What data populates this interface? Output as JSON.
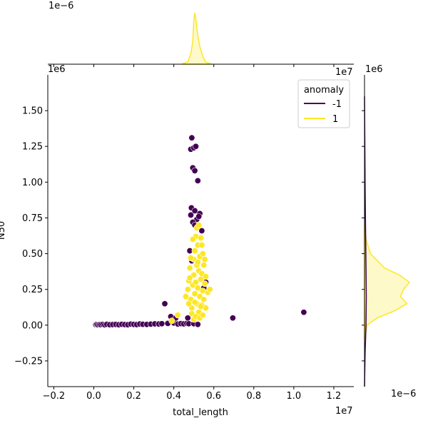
{
  "chart_data": {
    "type": "scatter",
    "title": "",
    "xlabel": "total_length",
    "ylabel": "N50",
    "x_scale_label": "1e7",
    "y_scale_label": "1e6",
    "top_marginal_scale_label": "1e−6",
    "right_marginal_scale_label": "1e−6",
    "right_marginal_top_label": "1e6",
    "top_marginal_right_label": "1e7",
    "xlim": [
      -2300000,
      13000000
    ],
    "ylim": [
      -430000,
      1750000
    ],
    "xticks": [
      -2000000,
      0,
      2000000,
      4000000,
      6000000,
      8000000,
      10000000,
      12000000
    ],
    "xtick_labels": [
      "−0.2",
      "0.0",
      "0.2",
      "0.4",
      "0.6",
      "0.8",
      "1.0",
      "1.2"
    ],
    "yticks": [
      -250000,
      0,
      250000,
      500000,
      750000,
      1000000,
      1250000,
      1500000
    ],
    "ytick_labels": [
      "−0.25",
      "0.00",
      "0.25",
      "0.50",
      "0.75",
      "1.00",
      "1.25",
      "1.50"
    ],
    "grid": false,
    "legend": {
      "title": "anomaly",
      "placement": "top-right",
      "entries": [
        {
          "label": "-1",
          "color": "#440154"
        },
        {
          "label": "1",
          "color": "#fde725"
        }
      ]
    },
    "series": [
      {
        "name": "-1",
        "color": "#440154",
        "points": [
          [
            100000,
            3000
          ],
          [
            150000,
            5000
          ],
          [
            200000,
            2000
          ],
          [
            280000,
            4000
          ],
          [
            350000,
            3000
          ],
          [
            450000,
            5000
          ],
          [
            550000,
            2000
          ],
          [
            650000,
            6000
          ],
          [
            800000,
            3000
          ],
          [
            950000,
            4000
          ],
          [
            1100000,
            5000
          ],
          [
            1250000,
            3000
          ],
          [
            1400000,
            6000
          ],
          [
            1550000,
            4000
          ],
          [
            1700000,
            3000
          ],
          [
            1850000,
            7000
          ],
          [
            2000000,
            5000
          ],
          [
            2150000,
            4000
          ],
          [
            2300000,
            8000
          ],
          [
            2450000,
            6000
          ],
          [
            2650000,
            5000
          ],
          [
            2850000,
            7000
          ],
          [
            3050000,
            9000
          ],
          [
            3250000,
            8000
          ],
          [
            3400000,
            10000
          ],
          [
            3550000,
            150000
          ],
          [
            3700000,
            12000
          ],
          [
            3850000,
            60000
          ],
          [
            4000000,
            15000
          ],
          [
            4100000,
            50000
          ],
          [
            4200000,
            8000
          ],
          [
            4350000,
            11000
          ],
          [
            4500000,
            9000
          ],
          [
            4650000,
            12000
          ],
          [
            4750000,
            10000
          ],
          [
            4800000,
            520000
          ],
          [
            4850000,
            1230000
          ],
          [
            4900000,
            1310000
          ],
          [
            4950000,
            1100000
          ],
          [
            5000000,
            1240000
          ],
          [
            5100000,
            1250000
          ],
          [
            5050000,
            1080000
          ],
          [
            5200000,
            1010000
          ],
          [
            4880000,
            820000
          ],
          [
            4850000,
            770000
          ],
          [
            5050000,
            800000
          ],
          [
            5300000,
            780000
          ],
          [
            5150000,
            740000
          ],
          [
            4950000,
            720000
          ],
          [
            5050000,
            700000
          ],
          [
            5250000,
            760000
          ],
          [
            5400000,
            660000
          ],
          [
            4900000,
            450000
          ],
          [
            5500000,
            260000
          ],
          [
            5600000,
            300000
          ],
          [
            4700000,
            50000
          ],
          [
            5000000,
            10000
          ],
          [
            5200000,
            5000
          ],
          [
            6950000,
            50000
          ],
          [
            10500000,
            90000
          ]
        ]
      },
      {
        "name": "1",
        "color": "#fde725",
        "points": [
          [
            3900000,
            30000
          ],
          [
            4200000,
            70000
          ],
          [
            4600000,
            200000
          ],
          [
            4700000,
            250000
          ],
          [
            4750000,
            310000
          ],
          [
            4800000,
            400000
          ],
          [
            4850000,
            180000
          ],
          [
            4900000,
            120000
          ],
          [
            4950000,
            280000
          ],
          [
            5000000,
            350000
          ],
          [
            5000000,
            460000
          ],
          [
            5050000,
            220000
          ],
          [
            5050000,
            520000
          ],
          [
            5100000,
            300000
          ],
          [
            5100000,
            620000
          ],
          [
            5150000,
            150000
          ],
          [
            5150000,
            420000
          ],
          [
            5200000,
            260000
          ],
          [
            5200000,
            560000
          ],
          [
            5250000,
            90000
          ],
          [
            5250000,
            380000
          ],
          [
            5300000,
            200000
          ],
          [
            5300000,
            480000
          ],
          [
            5350000,
            320000
          ],
          [
            5350000,
            610000
          ],
          [
            5400000,
            140000
          ],
          [
            5400000,
            360000
          ],
          [
            5450000,
            240000
          ],
          [
            5450000,
            500000
          ],
          [
            5500000,
            180000
          ],
          [
            5500000,
            420000
          ],
          [
            5550000,
            290000
          ],
          [
            5600000,
            120000
          ],
          [
            5600000,
            340000
          ],
          [
            5700000,
            230000
          ],
          [
            5800000,
            250000
          ],
          [
            4900000,
            80000
          ],
          [
            5000000,
            40000
          ],
          [
            5100000,
            60000
          ],
          [
            5300000,
            50000
          ],
          [
            5450000,
            70000
          ],
          [
            4800000,
            330000
          ],
          [
            4850000,
            470000
          ],
          [
            5150000,
            680000
          ],
          [
            5250000,
            700000
          ],
          [
            4950000,
            600000
          ],
          [
            5050000,
            160000
          ],
          [
            5350000,
            130000
          ],
          [
            5200000,
            440000
          ],
          [
            4750000,
            150000
          ],
          [
            5550000,
            460000
          ],
          [
            5400000,
            560000
          ]
        ]
      }
    ],
    "marginal_x": {
      "color": "#fde725",
      "x": [
        4400000,
        4700000,
        4850000,
        4950000,
        5000000,
        5050000,
        5100000,
        5150000,
        5200000,
        5300000,
        5450000,
        5600000,
        5900000
      ],
      "density": [
        0.0,
        0.05,
        0.2,
        0.45,
        0.85,
        1.0,
        0.88,
        0.7,
        0.55,
        0.35,
        0.15,
        0.04,
        0.0
      ]
    },
    "marginal_y": {
      "color": "#fde725",
      "y": [
        -100000,
        0,
        50000,
        100000,
        150000,
        200000,
        250000,
        300000,
        350000,
        400000,
        500000,
        600000,
        700000
      ],
      "density": [
        0.0,
        0.05,
        0.25,
        0.6,
        0.85,
        0.72,
        0.78,
        0.9,
        0.7,
        0.4,
        0.12,
        0.03,
        0.0
      ]
    },
    "marginal_y_anomaly": {
      "color": "#440154",
      "y": [
        -430000,
        -200000,
        0,
        200000,
        400000,
        700000,
        1000000,
        1300000,
        1600000
      ],
      "density": [
        0.0,
        0.012,
        0.03,
        0.035,
        0.03,
        0.02,
        0.012,
        0.006,
        0.0
      ]
    }
  }
}
